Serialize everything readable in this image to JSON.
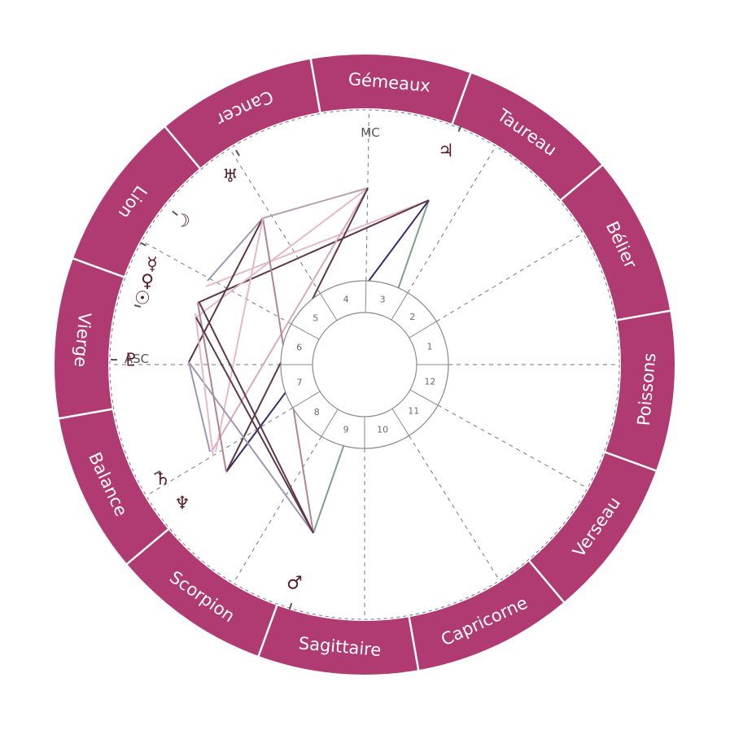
{
  "wheel": {
    "ring_color": "#b03a72",
    "signs": [
      {
        "name": "Gémeaux"
      },
      {
        "name": "Taureau"
      },
      {
        "name": "Bélier"
      },
      {
        "name": "Poissons"
      },
      {
        "name": "Verseau"
      },
      {
        "name": "Capricorne"
      },
      {
        "name": "Sagittaire"
      },
      {
        "name": "Scorpion"
      },
      {
        "name": "Balance"
      },
      {
        "name": "Vierge"
      },
      {
        "name": "Lion"
      },
      {
        "name": "Cancer"
      }
    ]
  },
  "angles": {
    "mc": "MC",
    "asc": "ASC"
  },
  "houses": [
    "1",
    "2",
    "3",
    "4",
    "5",
    "6",
    "7",
    "8",
    "9",
    "10",
    "11",
    "12"
  ],
  "planets": [
    {
      "name": "jupiter",
      "glyph": "♃"
    },
    {
      "name": "uranus",
      "glyph": "♅"
    },
    {
      "name": "moon",
      "glyph": "☽"
    },
    {
      "name": "mercury",
      "glyph": "☿"
    },
    {
      "name": "venus",
      "glyph": "♀"
    },
    {
      "name": "sun",
      "glyph": "☉"
    },
    {
      "name": "pluto",
      "glyph": "♇"
    },
    {
      "name": "saturn",
      "glyph": "♄"
    },
    {
      "name": "neptune",
      "glyph": "♆"
    },
    {
      "name": "mars",
      "glyph": "♂"
    }
  ]
}
